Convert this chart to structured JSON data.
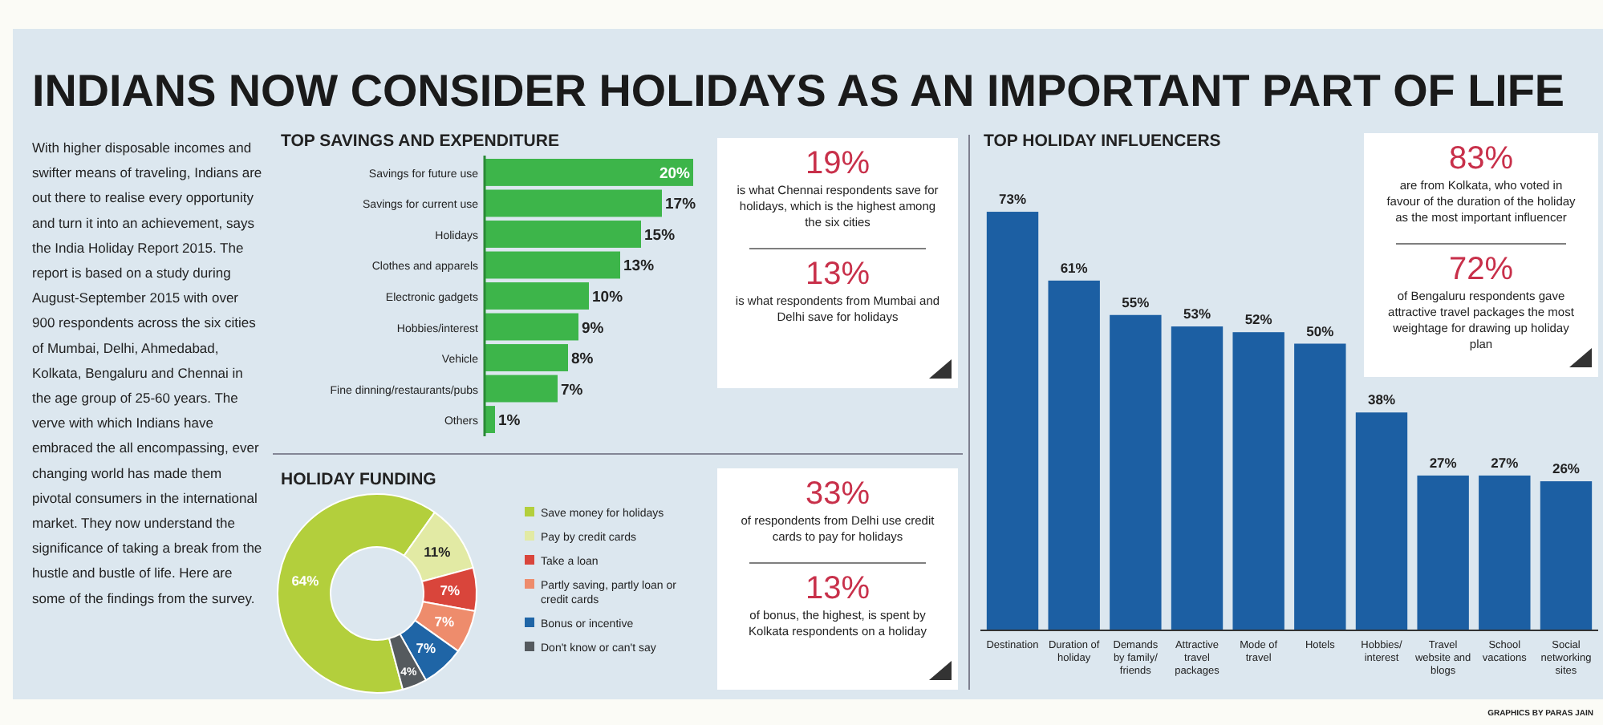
{
  "chart_data": [
    {
      "type": "other",
      "title": "INDIANS NOW CONSIDER HOLIDAYS AS AN IMPORTANT PART OF LIFE",
      "annotations": [
        "With higher disposable incomes and swifter means of traveling, Indians are out there to realise every opportunity and turn it into an achievement, says the India Holiday Report 2015. The report is based on a study during August-September 2015 with over 900 respondents across the six cities of Mumbai, Delhi, Ahmedabad, Kolkata, Bengaluru and Chennai in the age group of 25-60 years. The verve with which Indians have embraced the all encompassing, ever changing world has made them pivotal consumers in the international market. They now understand the significance of taking a break from the hustle and bustle of life. Here are some of the findings from the survey."
      ]
    },
    {
      "type": "bar",
      "orientation": "horizontal",
      "title": "TOP SAVINGS AND EXPENDITURE",
      "categories": [
        "Savings for future use",
        "Savings for current use",
        "Holidays",
        "Clothes and apparels",
        "Electronic gadgets",
        "Hobbies/interest",
        "Vehicle",
        "Fine dinning/restaurants/pubs",
        "Others"
      ],
      "values": [
        20,
        17,
        15,
        13,
        10,
        9,
        8,
        7,
        1
      ],
      "value_labels": [
        "20%",
        "17%",
        "15%",
        "13%",
        "10%",
        "9%",
        "8%",
        "7%",
        "1%"
      ],
      "color": "#3db54a"
    },
    {
      "type": "donut",
      "title": "HOLIDAY FUNDING",
      "categories": [
        "Save money for holidays",
        "Pay by credit cards",
        "Take a loan",
        "Partly saving, partly loan or credit cards",
        "Bonus or incentive",
        "Don't know or can't say"
      ],
      "values": [
        64,
        11,
        7,
        7,
        7,
        4
      ],
      "value_labels": [
        "64%",
        "11%",
        "7%",
        "7%",
        "7%",
        "4%"
      ],
      "colors": [
        "#b3cf3c",
        "#e2eaa4",
        "#d9453b",
        "#ee8c6c",
        "#1f65a6",
        "#555a5e"
      ],
      "legend": "right"
    },
    {
      "type": "other",
      "annotations": [
        "19%",
        "is what Chennai respondents save for holidays, which is the highest among the six cities",
        "13%",
        "is what respondents from Mumbai and Delhi save for holidays"
      ]
    },
    {
      "type": "other",
      "annotations": [
        "33%",
        "of respondents from Delhi use credit cards to pay for holidays",
        "13%",
        "of bonus, the highest, is spent by Kolkata respondents on a holiday"
      ]
    },
    {
      "type": "bar",
      "title": "TOP HOLIDAY INFLUENCERS",
      "categories": [
        "Destination",
        "Duration of holiday",
        "Demands by family/ friends",
        "Attractive travel packages",
        "Mode of travel",
        "Hotels",
        "Hobbies/ interest",
        "Travel website and blogs",
        "School vacations",
        "Social networking sites"
      ],
      "values": [
        73,
        61,
        55,
        53,
        52,
        50,
        38,
        27,
        27,
        26
      ],
      "value_labels": [
        "73%",
        "61%",
        "55%",
        "53%",
        "52%",
        "50%",
        "38%",
        "27%",
        "27%",
        "26%"
      ],
      "color": "#1c5fa3",
      "annotations": [
        "GRAPHICS BY PARAS JAIN"
      ]
    },
    {
      "type": "other",
      "annotations": [
        "83%",
        "are from Kolkata, who voted in favour of the duration of the holiday as the most important influencer",
        "72%",
        "of Bengaluru respondents gave attractive travel packages the most weightage for drawing up holiday plan"
      ]
    }
  ]
}
